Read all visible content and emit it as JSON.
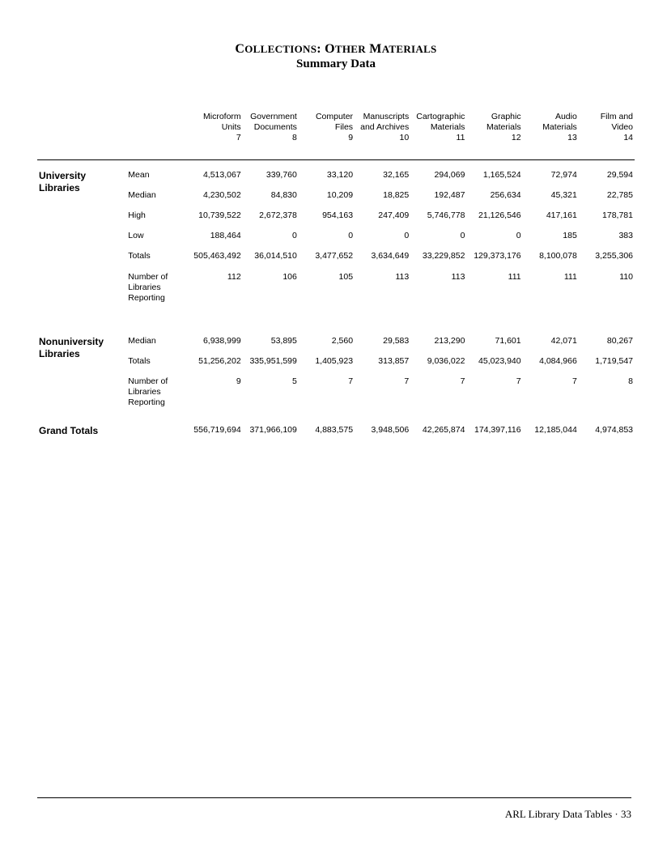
{
  "title": {
    "line1_caps": "C",
    "line1_sc_1": "OLLECTIONS",
    "line1_colon": ": ",
    "line1_caps2": "O",
    "line1_sc_2": "THER",
    "line1_space": " ",
    "line1_caps3": "M",
    "line1_sc_3": "ATERIALS",
    "line2": "Summary Data"
  },
  "columns": [
    {
      "h1": "Microform",
      "h2": "Units",
      "h3": "7"
    },
    {
      "h1": "Government",
      "h2": "Documents",
      "h3": "8"
    },
    {
      "h1": "Computer",
      "h2": "Files",
      "h3": "9"
    },
    {
      "h1": "Manuscripts",
      "h2": "and Archives",
      "h3": "10"
    },
    {
      "h1": "Cartographic",
      "h2": "Materials",
      "h3": "11"
    },
    {
      "h1": "Graphic",
      "h2": "Materials",
      "h3": "12"
    },
    {
      "h1": "Audio",
      "h2": "Materials",
      "h3": "13"
    },
    {
      "h1": "Film and",
      "h2": "Video",
      "h3": "14"
    }
  ],
  "sections": {
    "university": {
      "title_l1": "University",
      "title_l2": "Libraries",
      "rows": [
        {
          "label": "Mean",
          "v": [
            "4,513,067",
            "339,760",
            "33,120",
            "32,165",
            "294,069",
            "1,165,524",
            "72,974",
            "29,594"
          ]
        },
        {
          "label": "Median",
          "v": [
            "4,230,502",
            "84,830",
            "10,209",
            "18,825",
            "192,487",
            "256,634",
            "45,321",
            "22,785"
          ]
        },
        {
          "label": "High",
          "v": [
            "10,739,522",
            "2,672,378",
            "954,163",
            "247,409",
            "5,746,778",
            "21,126,546",
            "417,161",
            "178,781"
          ]
        },
        {
          "label": "Low",
          "v": [
            "188,464",
            "0",
            "0",
            "0",
            "0",
            "0",
            "185",
            "383"
          ]
        },
        {
          "label": "Totals",
          "v": [
            "505,463,492",
            "36,014,510",
            "3,477,652",
            "3,634,649",
            "33,229,852",
            "129,373,176",
            "8,100,078",
            "3,255,306"
          ]
        },
        {
          "label": "Number of Libraries Reporting",
          "v": [
            "112",
            "106",
            "105",
            "113",
            "113",
            "111",
            "111",
            "110"
          ]
        }
      ]
    },
    "nonuniversity": {
      "title_l1": "Nonuniversity",
      "title_l2": "Libraries",
      "rows": [
        {
          "label": "Median",
          "v": [
            "6,938,999",
            "53,895",
            "2,560",
            "29,583",
            "213,290",
            "71,601",
            "42,071",
            "80,267"
          ]
        },
        {
          "label": "Totals",
          "v": [
            "51,256,202",
            "335,951,599",
            "1,405,923",
            "313,857",
            "9,036,022",
            "45,023,940",
            "4,084,966",
            "1,719,547"
          ]
        },
        {
          "label": "Number of Libraries Reporting",
          "v": [
            "9",
            "5",
            "7",
            "7",
            "7",
            "7",
            "7",
            "8"
          ]
        }
      ]
    },
    "grand": {
      "title": "Grand Totals",
      "v": [
        "556,719,694",
        "371,966,109",
        "4,883,575",
        "3,948,506",
        "42,265,874",
        "174,397,116",
        "12,185,044",
        "4,974,853"
      ]
    }
  },
  "footer": {
    "text": "ARL Library Data Tables  ·  33"
  }
}
